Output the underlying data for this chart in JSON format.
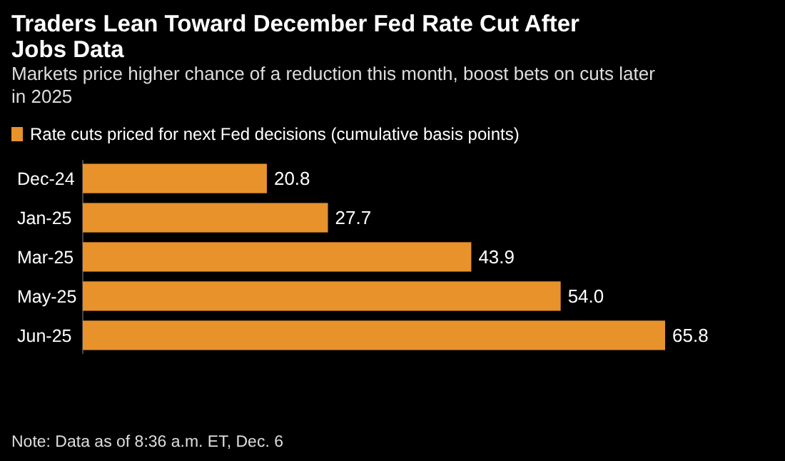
{
  "chart_data": {
    "type": "bar",
    "orientation": "horizontal",
    "title": "Traders Lean Toward December Fed Rate Cut After Jobs Data",
    "subtitle": "Markets price higher chance of a reduction this month, boost bets on cuts later in 2025",
    "categories": [
      "Dec-24",
      "Jan-25",
      "Mar-25",
      "May-25",
      "Jun-25"
    ],
    "series": [
      {
        "name": "Rate cuts priced for next Fed decisions (cumulative basis points)",
        "color": "#e8922c",
        "values": [
          20.8,
          27.7,
          43.9,
          54.0,
          65.8
        ],
        "value_labels": [
          "20.8",
          "27.7",
          "43.9",
          "54.0",
          "65.8"
        ]
      }
    ],
    "legend": "top left",
    "annotations": [
      "Note: Data as of 8:36 a.m. ET, Dec. 6"
    ]
  }
}
